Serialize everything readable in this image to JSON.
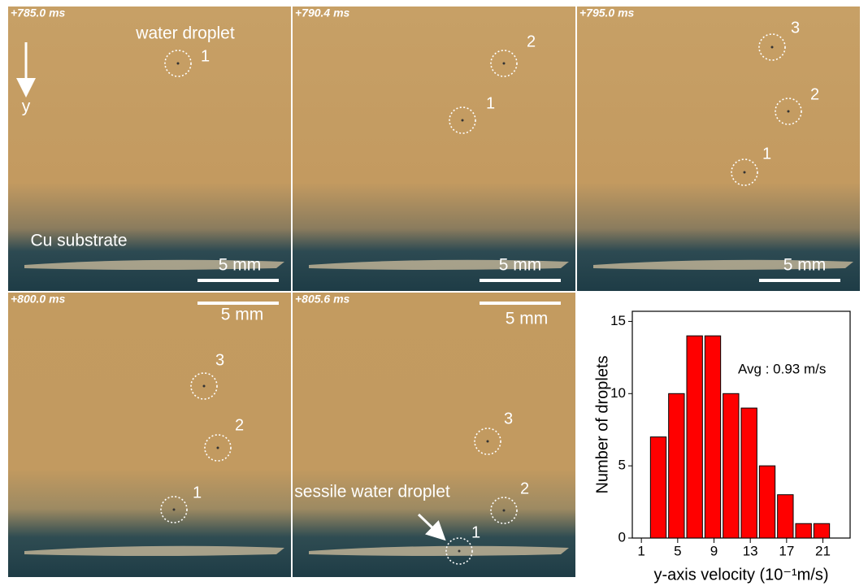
{
  "panels": [
    {
      "time": "+785.0 ms",
      "scale_bar": "5 mm",
      "droplets": [
        "1"
      ]
    },
    {
      "time": "+790.4 ms",
      "scale_bar": "5 mm",
      "droplets": [
        "2",
        "1"
      ]
    },
    {
      "time": "+795.0 ms",
      "scale_bar": "5 mm",
      "droplets": [
        "3",
        "2",
        "1"
      ]
    },
    {
      "time": "+800.0 ms",
      "scale_bar": "5 mm",
      "droplets": [
        "3",
        "2",
        "1"
      ]
    },
    {
      "time": "+805.6 ms",
      "scale_bar": "5 mm",
      "droplets": [
        "3",
        "2",
        "1"
      ]
    }
  ],
  "annotations": {
    "water_droplet": "water droplet",
    "axis": "y",
    "substrate": "Cu substrate",
    "sessile": "sessile water droplet"
  },
  "chart_data": {
    "type": "histogram",
    "bins": [
      2,
      4,
      6,
      8,
      10,
      12,
      14,
      16,
      18,
      20,
      22
    ],
    "values": [
      7,
      10,
      14,
      14,
      10,
      9,
      5,
      3,
      1,
      1
    ],
    "color": "#ff0000",
    "xlim": [
      0,
      24
    ],
    "ylim": [
      0,
      15.7
    ],
    "xticks": [
      1,
      5,
      9,
      13,
      17,
      21
    ],
    "yticks": [
      0,
      5,
      10,
      15
    ],
    "xlabel": "y-axis velocity (10⁻¹m/s)",
    "ylabel": "Number of droplets",
    "annotation": "Avg : 0.93 m/s"
  }
}
